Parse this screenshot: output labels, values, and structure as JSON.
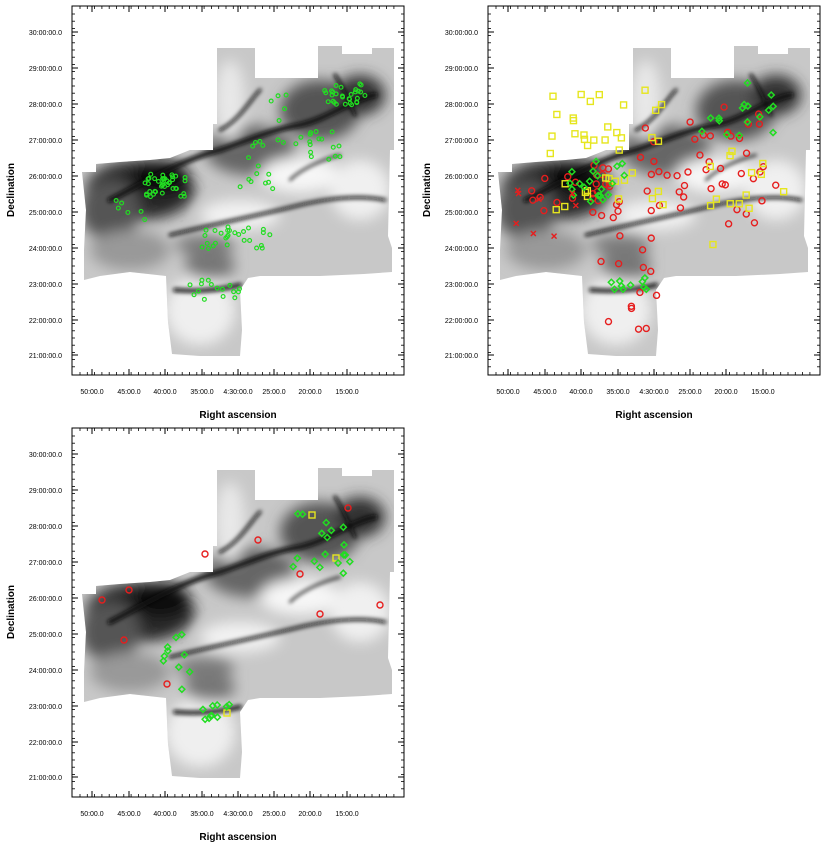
{
  "axes": {
    "xlabel": "Right ascension",
    "ylabel": "Declination",
    "yticks": [
      "30:00:00.0",
      "29:00:00.0",
      "28:00:00.0",
      "27:00:00.0",
      "26:00:00.0",
      "25:00:00.0",
      "24:00:00.0",
      "23:00:00.0",
      "22:00:00.0",
      "21:00:00.0"
    ],
    "xticks": [
      "50:00.0",
      "45:00.0",
      "40:00.0",
      "35:00.0",
      "4:30:00.0",
      "25:00.0",
      "20:00.0",
      "15:00.0"
    ]
  },
  "colors": {
    "green_marker": "#22dd22",
    "red_marker": "#e61e1e",
    "yellow_marker": "#e6e61e",
    "cloud_dark": "#1a1a1a",
    "background": "#ffffff"
  },
  "panels": [
    {
      "id": "top-left"
    },
    {
      "id": "top-right"
    },
    {
      "id": "bottom-left"
    }
  ]
}
